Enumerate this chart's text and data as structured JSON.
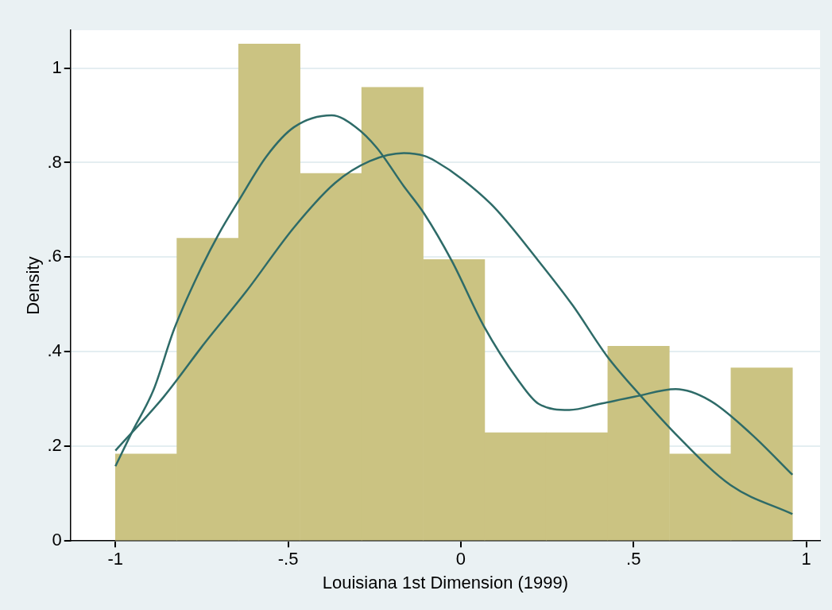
{
  "chart_data": {
    "type": "histogram",
    "xlabel": "Louisiana 1st Dimension (1999)",
    "ylabel": "Density",
    "bins": [
      -1,
      -0.822,
      -0.644,
      -0.465,
      -0.287,
      -0.109,
      0.069,
      0.247,
      0.425,
      0.604,
      0.782,
      0.96
    ],
    "values": [
      0.184,
      0.64,
      1.051,
      0.777,
      0.959,
      0.595,
      0.229,
      0.229,
      0.412,
      0.184,
      0.366
    ],
    "color": "#cbc382",
    "series": [
      {
        "type": "line",
        "color": "#2e6b68",
        "x": [
          -1,
          -0.95,
          -0.89,
          -0.83,
          -0.761,
          -0.701,
          -0.642,
          -0.562,
          -0.483,
          -0.374,
          -0.304,
          -0.244,
          -0.165,
          -0.106,
          -0.026,
          0.066,
          0.165,
          0.225,
          0.314,
          0.403,
          0.503,
          0.622,
          0.721,
          0.841,
          0.96
        ],
        "values": [
          0.158,
          0.233,
          0.319,
          0.448,
          0.563,
          0.649,
          0.721,
          0.814,
          0.875,
          0.9,
          0.875,
          0.832,
          0.75,
          0.692,
          0.592,
          0.455,
          0.341,
          0.29,
          0.277,
          0.29,
          0.305,
          0.321,
          0.297,
          0.226,
          0.14
        ]
      },
      {
        "type": "line",
        "color": "#2e6b68",
        "x": [
          -1,
          -0.86,
          -0.741,
          -0.622,
          -0.483,
          -0.364,
          -0.264,
          -0.165,
          -0.105,
          -0.073,
          0.006,
          0.096,
          0.225,
          0.324,
          0.423,
          0.523,
          0.622,
          0.781,
          0.96
        ],
        "values": [
          0.191,
          0.305,
          0.419,
          0.527,
          0.663,
          0.757,
          0.803,
          0.82,
          0.814,
          0.803,
          0.764,
          0.706,
          0.592,
          0.498,
          0.391,
          0.305,
          0.226,
          0.118,
          0.057
        ]
      }
    ],
    "xlim": [
      -1.13,
      1.04
    ],
    "ylim": [
      0,
      1.08
    ],
    "xticks": [
      {
        "value": -1,
        "label": "-1"
      },
      {
        "value": -0.5,
        "label": "-.5"
      },
      0,
      {
        "value": 0.5,
        "label": ".5"
      },
      1
    ],
    "yticks": [
      0,
      {
        "value": 0.2,
        "label": ".2"
      },
      {
        "value": 0.4,
        "label": ".4"
      },
      {
        "value": 0.6,
        "label": ".6"
      },
      {
        "value": 0.8,
        "label": ".8"
      },
      1
    ],
    "grid": "y",
    "legend": false,
    "marker": "none",
    "line_style": "solid"
  }
}
